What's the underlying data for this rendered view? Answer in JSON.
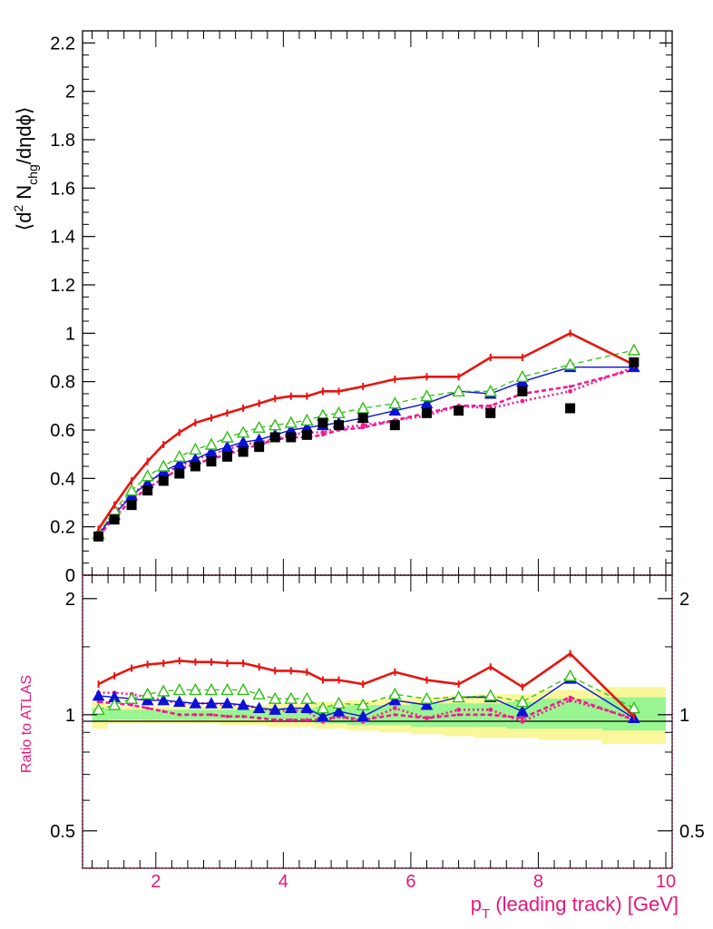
{
  "top_ylabel": {
    "pre": "⟨d",
    "sup": "2",
    "mid": " N",
    "sub": "chg",
    "post": "/dηdϕ⟩"
  },
  "bottom_ylabel": "Ratio to ATLAS",
  "xlabel": {
    "p": "p",
    "sub": "T",
    "rest": " (leading track) [GeV]"
  },
  "top_yticks": [
    "0",
    "0.2",
    "0.4",
    "0.6",
    "0.8",
    "1",
    "1.2",
    "1.4",
    "1.6",
    "1.8",
    "2",
    "2.2"
  ],
  "ratio_yticks": [
    "0.5",
    "1",
    "2"
  ],
  "xticks": [
    "2",
    "4",
    "6",
    "8",
    "10"
  ],
  "colors": {
    "red": "#e8140f",
    "green": "#2fbf12",
    "blue": "#0a12d6",
    "magenta": "#f01b8f",
    "black": "#000000",
    "band_inner": "#99f591",
    "band_outer": "#f9f79a",
    "axis_magenta": "#e6177a"
  },
  "chart_data": [
    {
      "type": "line",
      "panel": "main",
      "ylabel": "⟨d2 Nchg/dηdϕ⟩",
      "xlim": [
        0.85,
        10.1
      ],
      "ylim": [
        0,
        2.25
      ],
      "x": [
        1.1,
        1.35,
        1.62,
        1.87,
        2.12,
        2.37,
        2.62,
        2.87,
        3.12,
        3.37,
        3.62,
        3.87,
        4.12,
        4.37,
        4.62,
        4.87,
        5.25,
        5.75,
        6.25,
        6.75,
        7.25,
        7.75,
        8.5,
        9.5
      ],
      "series": [
        {
          "name": "",
          "style": "data",
          "values": [
            0.16,
            0.23,
            0.29,
            0.35,
            0.39,
            0.42,
            0.45,
            0.47,
            0.49,
            0.51,
            0.53,
            0.57,
            0.57,
            0.58,
            0.63,
            0.62,
            0.65,
            0.62,
            0.67,
            0.68,
            0.67,
            0.76,
            0.69,
            0.88
          ]
        },
        {
          "name": "",
          "style": "red",
          "values": [
            0.19,
            0.29,
            0.39,
            0.47,
            0.54,
            0.59,
            0.63,
            0.65,
            0.67,
            0.69,
            0.71,
            0.73,
            0.74,
            0.74,
            0.76,
            0.76,
            0.78,
            0.81,
            0.82,
            0.82,
            0.9,
            0.9,
            1.0,
            0.87
          ]
        },
        {
          "name": "",
          "style": "green",
          "values": [
            0.17,
            0.27,
            0.35,
            0.41,
            0.45,
            0.49,
            0.52,
            0.54,
            0.57,
            0.59,
            0.61,
            0.62,
            0.63,
            0.64,
            0.66,
            0.67,
            0.69,
            0.71,
            0.74,
            0.76,
            0.76,
            0.82,
            0.87,
            0.93
          ]
        },
        {
          "name": "",
          "style": "blue",
          "values": [
            0.17,
            0.25,
            0.33,
            0.38,
            0.43,
            0.46,
            0.48,
            0.51,
            0.53,
            0.55,
            0.56,
            0.58,
            0.6,
            0.61,
            0.62,
            0.63,
            0.65,
            0.68,
            0.71,
            0.76,
            0.75,
            0.8,
            0.86,
            0.86
          ]
        },
        {
          "name": "",
          "style": "magenta",
          "values": [
            0.17,
            0.26,
            0.33,
            0.39,
            0.42,
            0.45,
            0.48,
            0.5,
            0.52,
            0.54,
            0.55,
            0.56,
            0.58,
            0.59,
            0.59,
            0.61,
            0.62,
            0.64,
            0.66,
            0.7,
            0.69,
            0.72,
            0.76,
            0.86
          ]
        },
        {
          "name": "",
          "style": "magenta_dense",
          "values": [
            0.16,
            0.24,
            0.31,
            0.36,
            0.4,
            0.44,
            0.46,
            0.48,
            0.5,
            0.52,
            0.54,
            0.56,
            0.57,
            0.57,
            0.58,
            0.6,
            0.61,
            0.64,
            0.67,
            0.7,
            0.7,
            0.75,
            0.78,
            0.85
          ]
        }
      ]
    },
    {
      "type": "line",
      "panel": "ratio",
      "ylabel": "Ratio to ATLAS",
      "xlabel": "pT (leading track) [GeV]",
      "xlim": [
        0.85,
        10.1
      ],
      "ylim": [
        0.4,
        2.3
      ],
      "log_y": true,
      "x": [
        1.1,
        1.35,
        1.62,
        1.87,
        2.12,
        2.37,
        2.62,
        2.87,
        3.12,
        3.37,
        3.62,
        3.87,
        4.12,
        4.37,
        4.62,
        4.87,
        5.25,
        5.75,
        6.25,
        6.75,
        7.25,
        7.75,
        8.5,
        9.5
      ],
      "bands": {
        "edges": [
          1.0,
          1.25,
          1.5,
          1.75,
          2.0,
          2.25,
          2.5,
          2.75,
          3.0,
          3.25,
          3.5,
          3.75,
          4.0,
          4.25,
          4.5,
          4.75,
          5.0,
          5.5,
          6.0,
          6.5,
          7.0,
          7.5,
          8.0,
          9.0,
          10.0
        ],
        "inner_lo": [
          0.96,
          0.97,
          0.97,
          0.97,
          0.97,
          0.97,
          0.97,
          0.97,
          0.97,
          0.97,
          0.97,
          0.96,
          0.96,
          0.96,
          0.95,
          0.95,
          0.94,
          0.94,
          0.93,
          0.93,
          0.93,
          0.92,
          0.92,
          0.91
        ],
        "inner_hi": [
          1.04,
          1.03,
          1.03,
          1.03,
          1.03,
          1.03,
          1.03,
          1.03,
          1.03,
          1.03,
          1.03,
          1.04,
          1.04,
          1.04,
          1.05,
          1.05,
          1.06,
          1.06,
          1.07,
          1.07,
          1.07,
          1.08,
          1.1,
          1.11
        ],
        "outer_lo": [
          0.92,
          0.95,
          0.95,
          0.95,
          0.95,
          0.95,
          0.95,
          0.95,
          0.94,
          0.94,
          0.94,
          0.93,
          0.93,
          0.93,
          0.92,
          0.92,
          0.91,
          0.9,
          0.89,
          0.88,
          0.87,
          0.87,
          0.86,
          0.84
        ],
        "outer_hi": [
          1.08,
          1.05,
          1.05,
          1.05,
          1.05,
          1.05,
          1.05,
          1.05,
          1.06,
          1.06,
          1.06,
          1.07,
          1.07,
          1.07,
          1.08,
          1.08,
          1.09,
          1.1,
          1.11,
          1.12,
          1.13,
          1.13,
          1.16,
          1.18
        ]
      },
      "reference": 1,
      "series": [
        {
          "name": "",
          "style": "red",
          "values": [
            1.2,
            1.26,
            1.32,
            1.35,
            1.36,
            1.38,
            1.37,
            1.37,
            1.36,
            1.36,
            1.33,
            1.3,
            1.3,
            1.29,
            1.23,
            1.23,
            1.2,
            1.29,
            1.23,
            1.2,
            1.33,
            1.18,
            1.44,
            0.99
          ]
        },
        {
          "name": "",
          "style": "green",
          "values": [
            1.03,
            1.06,
            1.1,
            1.13,
            1.15,
            1.16,
            1.16,
            1.16,
            1.16,
            1.16,
            1.13,
            1.1,
            1.1,
            1.1,
            1.04,
            1.07,
            1.06,
            1.13,
            1.1,
            1.11,
            1.12,
            1.08,
            1.26,
            1.04
          ]
        },
        {
          "name": "",
          "style": "blue",
          "values": [
            1.12,
            1.11,
            1.1,
            1.09,
            1.09,
            1.08,
            1.07,
            1.07,
            1.07,
            1.06,
            1.04,
            1.03,
            1.04,
            1.04,
            0.99,
            1.02,
            0.99,
            1.09,
            1.06,
            1.11,
            1.11,
            1.02,
            1.24,
            0.98
          ]
        },
        {
          "name": "",
          "style": "magenta",
          "values": [
            1.14,
            1.14,
            1.13,
            1.11,
            1.09,
            1.07,
            1.07,
            1.07,
            1.06,
            1.06,
            1.04,
            1.02,
            1.03,
            1.02,
            0.96,
            0.99,
            0.96,
            1.04,
            0.98,
            1.03,
            1.03,
            0.96,
            1.09,
            0.98
          ]
        },
        {
          "name": "",
          "style": "magenta_dense",
          "values": [
            1.08,
            1.07,
            1.06,
            1.04,
            1.02,
            1.0,
            1.0,
            1.0,
            0.99,
            0.99,
            0.98,
            0.97,
            0.97,
            0.97,
            0.97,
            0.99,
            0.97,
            1.0,
            0.98,
            1.0,
            1.0,
            0.98,
            1.11,
            0.97
          ]
        }
      ]
    }
  ]
}
